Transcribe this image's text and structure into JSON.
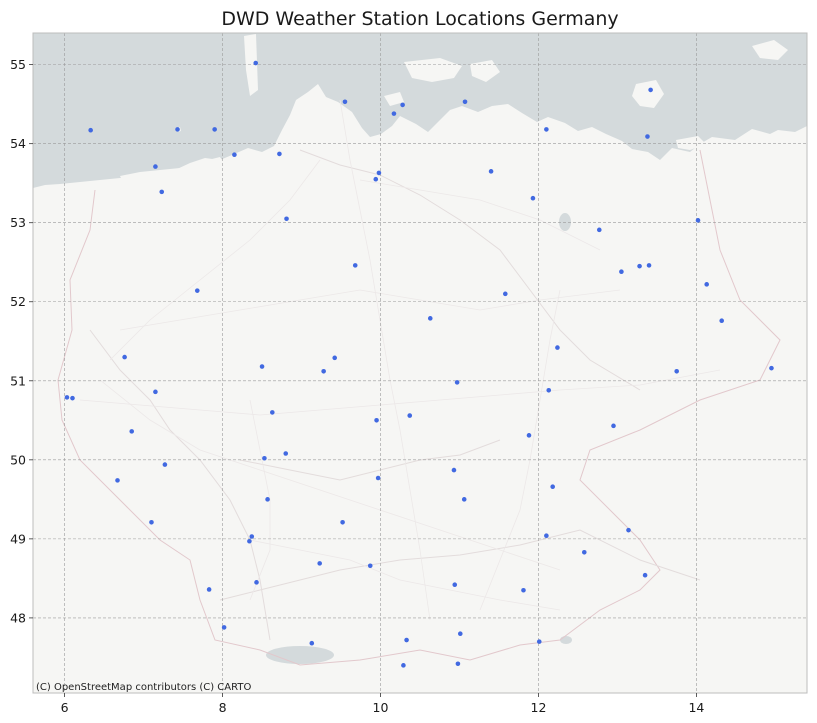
{
  "title": "DWD Weather Station Locations Germany",
  "attribution": "(C) OpenStreetMap contributors (C) CARTO",
  "colors": {
    "land": "#f6f6f4",
    "water": "#d4dadc",
    "station": "#4169e1",
    "frame": "#bdbdbd"
  },
  "chart_data": {
    "type": "scatter",
    "xlim": [
      5.6,
      15.4
    ],
    "ylim": [
      47.05,
      55.4
    ],
    "xticks": [
      6,
      8,
      10,
      12,
      14
    ],
    "yticks": [
      48,
      49,
      50,
      51,
      52,
      53,
      54,
      55
    ],
    "grid": true,
    "basemap": "CARTO light (OpenStreetMap)",
    "series": [
      {
        "points": [
          [
            8.42,
            55.02
          ],
          [
            9.55,
            54.53
          ],
          [
            10.28,
            54.49
          ],
          [
            10.17,
            54.38
          ],
          [
            11.07,
            54.53
          ],
          [
            13.42,
            54.68
          ],
          [
            6.33,
            54.17
          ],
          [
            7.43,
            54.18
          ],
          [
            7.9,
            54.18
          ],
          [
            12.1,
            54.18
          ],
          [
            13.38,
            54.09
          ],
          [
            8.15,
            53.86
          ],
          [
            8.72,
            53.87
          ],
          [
            7.15,
            53.71
          ],
          [
            11.4,
            53.65
          ],
          [
            9.98,
            53.63
          ],
          [
            9.94,
            53.55
          ],
          [
            7.23,
            53.39
          ],
          [
            11.93,
            53.31
          ],
          [
            8.81,
            53.05
          ],
          [
            14.02,
            53.03
          ],
          [
            12.77,
            52.91
          ],
          [
            9.68,
            52.46
          ],
          [
            13.05,
            52.38
          ],
          [
            13.28,
            52.45
          ],
          [
            13.4,
            52.46
          ],
          [
            7.68,
            52.14
          ],
          [
            11.58,
            52.1
          ],
          [
            14.13,
            52.22
          ],
          [
            10.63,
            51.79
          ],
          [
            14.32,
            51.76
          ],
          [
            12.24,
            51.42
          ],
          [
            6.76,
            51.3
          ],
          [
            9.42,
            51.29
          ],
          [
            13.75,
            51.12
          ],
          [
            14.95,
            51.16
          ],
          [
            8.5,
            51.18
          ],
          [
            9.28,
            51.12
          ],
          [
            10.97,
            50.98
          ],
          [
            6.03,
            50.79
          ],
          [
            6.1,
            50.78
          ],
          [
            7.15,
            50.86
          ],
          [
            12.13,
            50.88
          ],
          [
            8.63,
            50.6
          ],
          [
            10.37,
            50.56
          ],
          [
            9.95,
            50.5
          ],
          [
            12.95,
            50.43
          ],
          [
            6.85,
            50.36
          ],
          [
            11.88,
            50.31
          ],
          [
            8.8,
            50.08
          ],
          [
            8.53,
            50.02
          ],
          [
            7.27,
            49.94
          ],
          [
            10.93,
            49.87
          ],
          [
            9.97,
            49.77
          ],
          [
            6.67,
            49.74
          ],
          [
            12.18,
            49.66
          ],
          [
            8.57,
            49.5
          ],
          [
            11.06,
            49.5
          ],
          [
            7.1,
            49.21
          ],
          [
            9.52,
            49.21
          ],
          [
            13.14,
            49.11
          ],
          [
            12.1,
            49.04
          ],
          [
            8.37,
            49.03
          ],
          [
            8.34,
            48.97
          ],
          [
            12.58,
            48.83
          ],
          [
            9.23,
            48.69
          ],
          [
            9.87,
            48.66
          ],
          [
            13.35,
            48.54
          ],
          [
            8.43,
            48.45
          ],
          [
            10.94,
            48.42
          ],
          [
            7.83,
            48.36
          ],
          [
            11.81,
            48.35
          ],
          [
            8.02,
            47.88
          ],
          [
            11.01,
            47.8
          ],
          [
            10.33,
            47.72
          ],
          [
            12.01,
            47.7
          ],
          [
            9.13,
            47.68
          ],
          [
            10.98,
            47.42
          ],
          [
            10.29,
            47.4
          ]
        ]
      }
    ]
  }
}
